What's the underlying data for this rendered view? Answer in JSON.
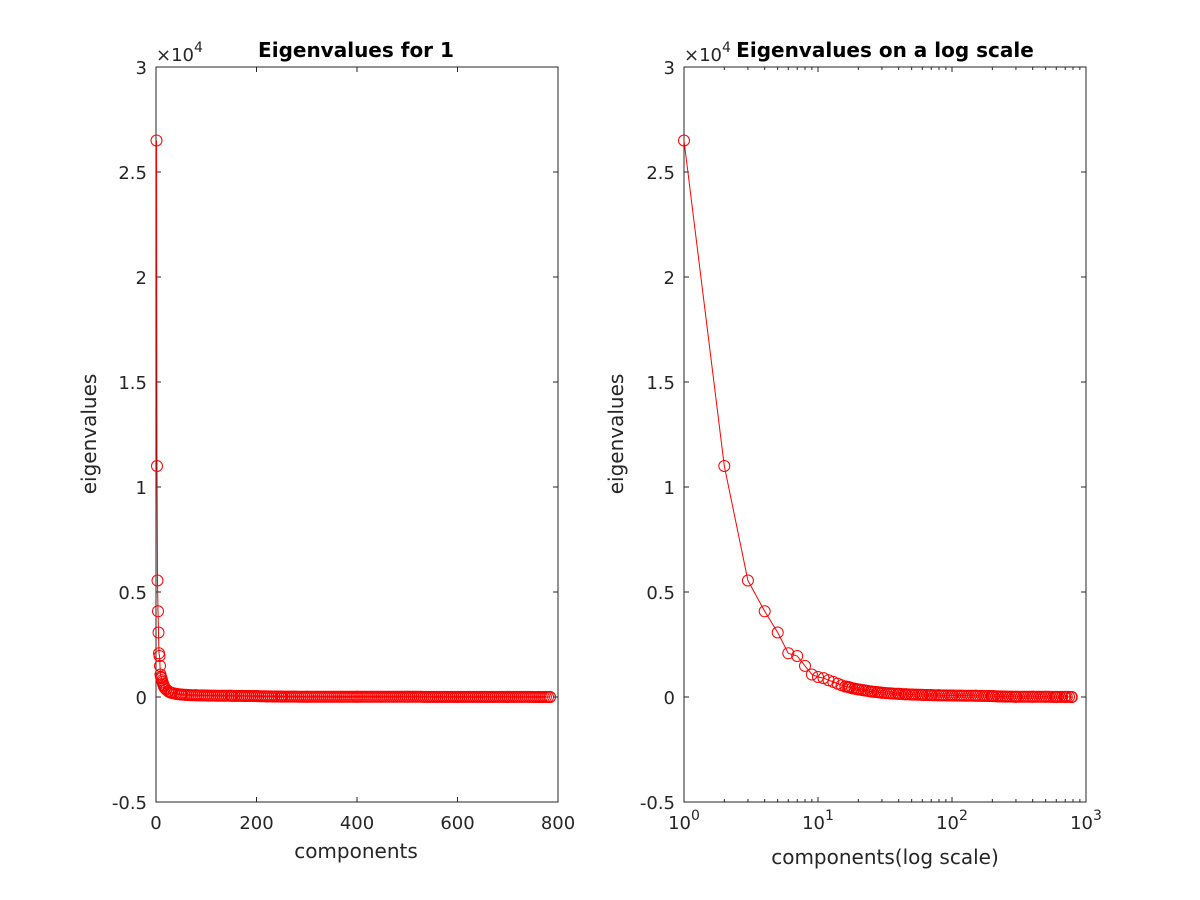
{
  "figure": {
    "background": "#ffffff"
  },
  "chart_data": [
    {
      "type": "line",
      "title": "Eigenvalues for 1",
      "xlabel": "components",
      "ylabel": "eigenvalues",
      "xscale": "linear",
      "xlim": [
        0,
        800
      ],
      "ylim": [
        -5000,
        30000
      ],
      "xticks": [
        0,
        200,
        400,
        600,
        800
      ],
      "xtick_labels": [
        "0",
        "200",
        "400",
        "600",
        "800"
      ],
      "yticks": [
        -5000,
        0,
        5000,
        10000,
        15000,
        20000,
        25000,
        30000
      ],
      "ytick_labels": [
        "-0.5",
        "0",
        "0.5",
        "1",
        "1.5",
        "2",
        "2.5",
        "3"
      ],
      "y_exponent_label": "×10",
      "y_exponent_power": "4",
      "grid": false,
      "series": [
        {
          "color": "#ff0000",
          "marker": "circle-open",
          "x": [
            1,
            2,
            3,
            4,
            5,
            6,
            7,
            8,
            9,
            10,
            11,
            12,
            13,
            14,
            15,
            16,
            18,
            20,
            25,
            30,
            40,
            50,
            60,
            80,
            100,
            150,
            200,
            220,
            250,
            300,
            400,
            500,
            600,
            700,
            784
          ],
          "y": [
            26500,
            11000,
            5550,
            4080,
            3070,
            2080,
            1950,
            1480,
            1070,
            950,
            900,
            800,
            720,
            640,
            560,
            500,
            420,
            360,
            260,
            200,
            150,
            120,
            100,
            80,
            70,
            55,
            45,
            30,
            20,
            15,
            10,
            8,
            5,
            3,
            2
          ]
        }
      ]
    },
    {
      "type": "line",
      "title": "Eigenvalues on a log scale",
      "xlabel": "components(log scale)",
      "ylabel": "eigenvalues",
      "xscale": "log",
      "xlim": [
        1,
        1000
      ],
      "ylim": [
        -5000,
        30000
      ],
      "xticks": [
        1,
        10,
        100,
        1000
      ],
      "xtick_bases": [
        "10",
        "10",
        "10",
        "10"
      ],
      "xtick_powers": [
        "0",
        "1",
        "2",
        "3"
      ],
      "yticks": [
        -5000,
        0,
        5000,
        10000,
        15000,
        20000,
        25000,
        30000
      ],
      "ytick_labels": [
        "-0.5",
        "0",
        "0.5",
        "1",
        "1.5",
        "2",
        "2.5",
        "3"
      ],
      "y_exponent_label": "×10",
      "y_exponent_power": "4",
      "grid": false,
      "series": [
        {
          "color": "#ff0000",
          "marker": "circle-open",
          "x": [
            1,
            2,
            3,
            4,
            5,
            6,
            7,
            8,
            9,
            10,
            11,
            12,
            13,
            14,
            15,
            16,
            17,
            18,
            20,
            22,
            25,
            28,
            30,
            35,
            40,
            45,
            50,
            60,
            70,
            80,
            100,
            150,
            200,
            220,
            250,
            300,
            400,
            500,
            600,
            700,
            784
          ],
          "y": [
            26500,
            11000,
            5550,
            4080,
            3070,
            2080,
            1950,
            1480,
            1070,
            950,
            900,
            800,
            720,
            640,
            560,
            500,
            470,
            420,
            360,
            320,
            260,
            230,
            200,
            170,
            150,
            130,
            120,
            100,
            90,
            80,
            70,
            55,
            45,
            30,
            20,
            15,
            10,
            8,
            5,
            3,
            2
          ]
        }
      ]
    }
  ]
}
